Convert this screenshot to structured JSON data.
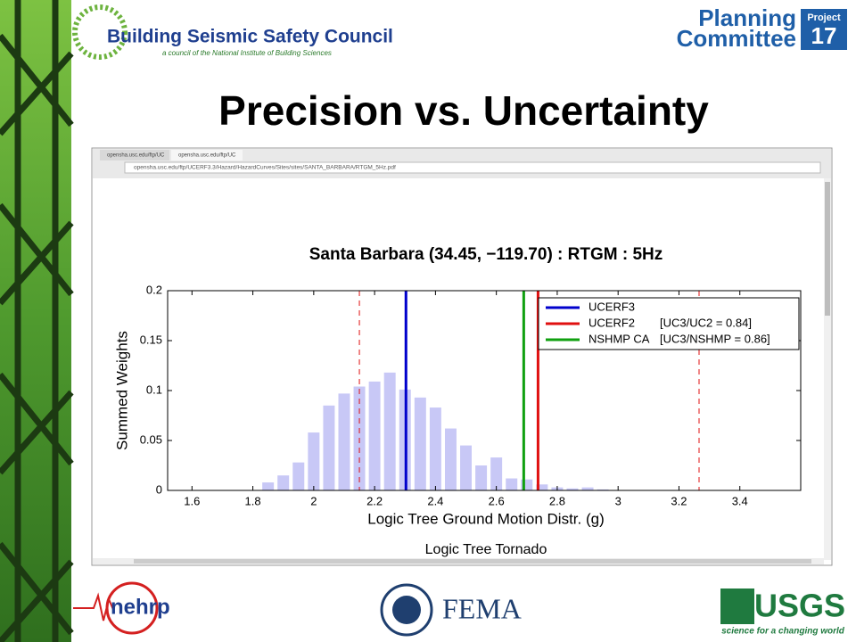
{
  "slide": {
    "title": "Precision vs. Uncertainty",
    "org_name": "Building Seismic Safety Council",
    "org_tagline": "a council of the National Institute of Building Sciences",
    "committee_line1": "Planning",
    "committee_line2": "Committee",
    "project_label": "Project",
    "project_number": "17",
    "logo_nehrp": "nehrp",
    "logo_fema": "FEMA",
    "logo_usgs": "USGS",
    "usgs_tagline": "science for a changing world"
  },
  "browser": {
    "tab1": "opensha.usc.edu/ftp/UC",
    "tab2": "opensha.usc.edu/ftp/UC",
    "url": "opensha.usc.edu/ftp/UCERF3.3/Hazard/HazardCurves/Sites/sites/SANTA_BARBARA/RTGM_5Hz.pdf",
    "footer_text": "Logic Tree Tornado"
  },
  "chart_data": {
    "type": "histogram",
    "title": "Santa Barbara (34.45, −119.70) : RTGM : 5Hz",
    "x_label": "Logic Tree Ground Motion Distr. (g)",
    "y_label": "Summed Weights",
    "bins": [
      1.825,
      1.875,
      1.925,
      1.975,
      2.025,
      2.075,
      2.125,
      2.175,
      2.225,
      2.275,
      2.325,
      2.375,
      2.425,
      2.475,
      2.525,
      2.575,
      2.625,
      2.675,
      2.725,
      2.775,
      2.825,
      2.875,
      2.925,
      2.975
    ],
    "counts": [
      0.008,
      0.015,
      0.028,
      0.058,
      0.085,
      0.097,
      0.104,
      0.109,
      0.118,
      0.101,
      0.093,
      0.083,
      0.062,
      0.045,
      0.025,
      0.033,
      0.012,
      0.011,
      0.006,
      0.003,
      0.002,
      0.003,
      0.001
    ],
    "color": "#c8c8f6",
    "xlim": [
      1.52,
      3.6
    ],
    "ylim": [
      0,
      0.2
    ],
    "xticks": [
      1.6,
      1.8,
      2,
      2.2,
      2.4,
      2.6,
      2.8,
      3,
      3.2,
      3.4
    ],
    "yticks": [
      0,
      0.05,
      0.1,
      0.15,
      0.2
    ],
    "legend_position": "upper right",
    "series": [
      {
        "name": "UCERF3",
        "color": "#0000cc",
        "value": 2.303
      },
      {
        "name": "UCERF2",
        "color": "#e01010",
        "value": 2.737,
        "note": "[UC3/UC2 = 0.84]",
        "bounds": [
          2.15,
          3.266
        ]
      },
      {
        "name": "NSHMP CA",
        "color": "#10a010",
        "value": 2.69,
        "note": "[UC3/NSHMP = 0.86]"
      }
    ]
  }
}
